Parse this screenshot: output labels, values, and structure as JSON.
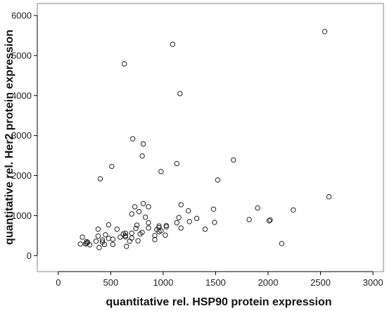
{
  "chart_data": {
    "type": "scatter",
    "title": "",
    "xlabel": "quantitative rel. HSP90 protein expression",
    "ylabel": "quantitative rel. Her2 protein expression",
    "xlim": [
      -200,
      3100
    ],
    "ylim": [
      -400,
      6300
    ],
    "xticks": [
      0,
      500,
      1000,
      1500,
      2000,
      2500,
      3000
    ],
    "yticks": [
      0,
      1000,
      2000,
      3000,
      4000,
      5000,
      6000
    ],
    "grid": false,
    "marker": "open-circle",
    "colors": {
      "background": "#ffffff",
      "marker_stroke": "#222222",
      "axis": "#000000",
      "frame": "#888888"
    },
    "points": [
      {
        "x": 2540,
        "y": 5600
      },
      {
        "x": 1090,
        "y": 5280
      },
      {
        "x": 630,
        "y": 4790
      },
      {
        "x": 1160,
        "y": 4050
      },
      {
        "x": 710,
        "y": 2920
      },
      {
        "x": 810,
        "y": 2790
      },
      {
        "x": 800,
        "y": 2490
      },
      {
        "x": 1670,
        "y": 2390
      },
      {
        "x": 1130,
        "y": 2300
      },
      {
        "x": 510,
        "y": 2230
      },
      {
        "x": 980,
        "y": 2100
      },
      {
        "x": 400,
        "y": 1920
      },
      {
        "x": 1520,
        "y": 1890
      },
      {
        "x": 2580,
        "y": 1470
      },
      {
        "x": 810,
        "y": 1300
      },
      {
        "x": 1170,
        "y": 1270
      },
      {
        "x": 730,
        "y": 1220
      },
      {
        "x": 860,
        "y": 1220
      },
      {
        "x": 1900,
        "y": 1190
      },
      {
        "x": 1480,
        "y": 1160
      },
      {
        "x": 2240,
        "y": 1140
      },
      {
        "x": 770,
        "y": 1100
      },
      {
        "x": 1240,
        "y": 1120
      },
      {
        "x": 700,
        "y": 1040
      },
      {
        "x": 830,
        "y": 960
      },
      {
        "x": 1150,
        "y": 950
      },
      {
        "x": 1320,
        "y": 930
      },
      {
        "x": 1820,
        "y": 900
      },
      {
        "x": 2020,
        "y": 890
      },
      {
        "x": 2010,
        "y": 870
      },
      {
        "x": 1250,
        "y": 850
      },
      {
        "x": 1490,
        "y": 830
      },
      {
        "x": 860,
        "y": 820
      },
      {
        "x": 1130,
        "y": 820
      },
      {
        "x": 480,
        "y": 770
      },
      {
        "x": 750,
        "y": 760
      },
      {
        "x": 1030,
        "y": 750
      },
      {
        "x": 960,
        "y": 740
      },
      {
        "x": 1030,
        "y": 720
      },
      {
        "x": 960,
        "y": 700
      },
      {
        "x": 1170,
        "y": 690
      },
      {
        "x": 860,
        "y": 690
      },
      {
        "x": 740,
        "y": 680
      },
      {
        "x": 1400,
        "y": 660
      },
      {
        "x": 380,
        "y": 660
      },
      {
        "x": 560,
        "y": 660
      },
      {
        "x": 940,
        "y": 650
      },
      {
        "x": 980,
        "y": 620
      },
      {
        "x": 960,
        "y": 600
      },
      {
        "x": 800,
        "y": 580
      },
      {
        "x": 700,
        "y": 560
      },
      {
        "x": 640,
        "y": 560
      },
      {
        "x": 620,
        "y": 540
      },
      {
        "x": 780,
        "y": 540
      },
      {
        "x": 450,
        "y": 520
      },
      {
        "x": 1020,
        "y": 510
      },
      {
        "x": 640,
        "y": 500
      },
      {
        "x": 920,
        "y": 500
      },
      {
        "x": 380,
        "y": 490
      },
      {
        "x": 640,
        "y": 470
      },
      {
        "x": 590,
        "y": 460
      },
      {
        "x": 230,
        "y": 460
      },
      {
        "x": 700,
        "y": 440
      },
      {
        "x": 480,
        "y": 430
      },
      {
        "x": 520,
        "y": 410
      },
      {
        "x": 420,
        "y": 390
      },
      {
        "x": 920,
        "y": 400
      },
      {
        "x": 760,
        "y": 370
      },
      {
        "x": 360,
        "y": 360
      },
      {
        "x": 680,
        "y": 360
      },
      {
        "x": 270,
        "y": 350
      },
      {
        "x": 420,
        "y": 340
      },
      {
        "x": 280,
        "y": 330
      },
      {
        "x": 270,
        "y": 310
      },
      {
        "x": 260,
        "y": 290
      },
      {
        "x": 210,
        "y": 290
      },
      {
        "x": 2130,
        "y": 300
      },
      {
        "x": 520,
        "y": 280
      },
      {
        "x": 440,
        "y": 280
      },
      {
        "x": 300,
        "y": 270
      },
      {
        "x": 650,
        "y": 230
      },
      {
        "x": 390,
        "y": 200
      }
    ]
  }
}
